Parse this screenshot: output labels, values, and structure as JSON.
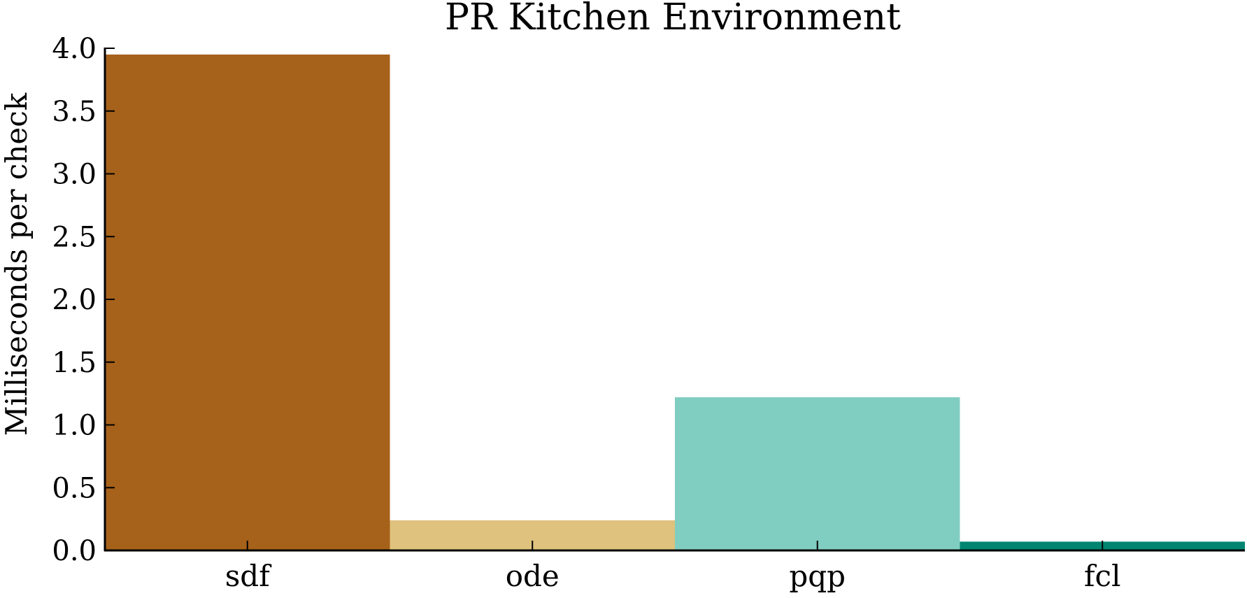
{
  "chart_data": {
    "type": "bar",
    "title": "PR Kitchen Environment",
    "xlabel": "",
    "ylabel": "Milliseconds per check",
    "categories": [
      "sdf",
      "ode",
      "pqp",
      "fcl"
    ],
    "values": [
      3.95,
      0.24,
      1.22,
      0.07
    ],
    "colors": [
      "#a6611a",
      "#dfc27d",
      "#80cdc1",
      "#018571"
    ],
    "ylim": [
      0,
      4.0
    ],
    "yticks": [
      "0.0",
      "0.5",
      "1.0",
      "1.5",
      "2.0",
      "2.5",
      "3.0",
      "3.5",
      "4.0"
    ],
    "grid": false,
    "legend": "none"
  }
}
